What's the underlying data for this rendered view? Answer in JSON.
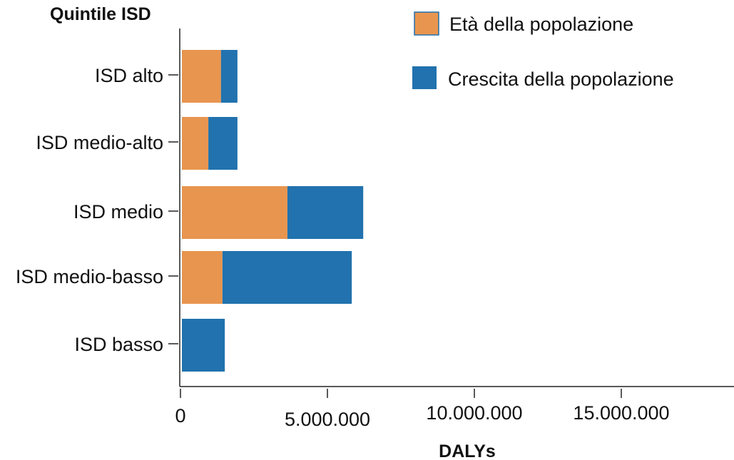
{
  "chart_data": {
    "type": "bar",
    "orientation": "horizontal",
    "stacked": true,
    "title": "",
    "ylabel": "Quintile ISD",
    "xlabel": "DALYs",
    "categories": [
      "ISD alto",
      "ISD medio-alto",
      "ISD medio",
      "ISD medio-basso",
      "ISD basso"
    ],
    "series": [
      {
        "name": "Età della popolazione",
        "color": "#E8954F",
        "values": [
          1330000,
          900000,
          3590000,
          1380000,
          0
        ]
      },
      {
        "name": "Crescita della popolazione",
        "color": "#2172AE",
        "values": [
          560000,
          990000,
          2580000,
          4400000,
          1460000
        ]
      }
    ],
    "xlim": [
      0,
      18800000
    ],
    "xticks": [
      0,
      5000000,
      10000000,
      15000000
    ],
    "xtick_labels": [
      "0",
      "5.000.000",
      "10.000.000",
      "15.000.000"
    ],
    "grid": false,
    "legend_position": "top-right"
  }
}
